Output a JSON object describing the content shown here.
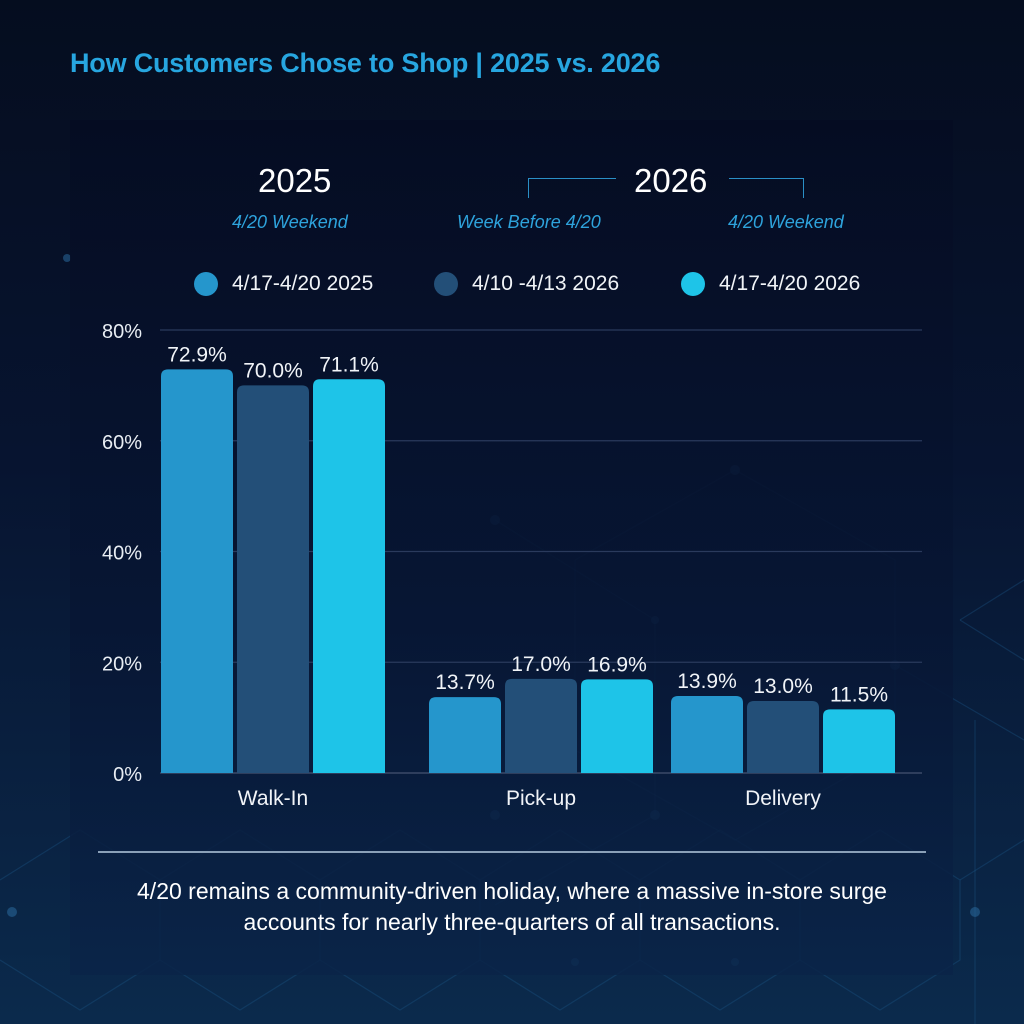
{
  "title": "How Customers Chose to Shop | 2025 vs. 2026",
  "header": {
    "year_2025": "2025",
    "year_2025_sub": "4/20 Weekend",
    "year_2026": "2026",
    "year_2026_sub_left": "Week Before 4/20",
    "year_2026_sub_right": "4/20 Weekend"
  },
  "colors": {
    "title": "#27a6e0",
    "series_1": "#2596cc",
    "series_2": "#234f78",
    "series_3": "#1ec4e8"
  },
  "chart_data": {
    "type": "bar",
    "title": "How Customers Chose to Shop | 2025 vs. 2026",
    "xlabel": "",
    "ylabel": "",
    "categories": [
      "Walk-In",
      "Pick-up",
      "Delivery"
    ],
    "series": [
      {
        "name": "4/17-4/20 2025",
        "values": [
          72.9,
          13.7,
          13.9
        ],
        "labels": [
          "72.9%",
          "13.7%",
          "13.9%"
        ]
      },
      {
        "name": "4/10 -4/13 2026",
        "values": [
          70.0,
          17.0,
          13.0
        ],
        "labels": [
          "70.0%",
          "17.0%",
          "13.0%"
        ]
      },
      {
        "name": "4/17-4/20 2026",
        "values": [
          71.1,
          16.9,
          11.5
        ],
        "labels": [
          "71.1%",
          "16.9%",
          "11.5%"
        ]
      }
    ],
    "ylim": [
      0,
      80
    ],
    "yticks": [
      0,
      20,
      40,
      60,
      80
    ],
    "ytick_labels": [
      "0%",
      "20%",
      "40%",
      "60%",
      "80%"
    ],
    "grid": true,
    "legend_position": "top"
  },
  "caption": "4/20 remains a community-driven holiday, where a massive in-store surge accounts for nearly three-quarters of all transactions."
}
